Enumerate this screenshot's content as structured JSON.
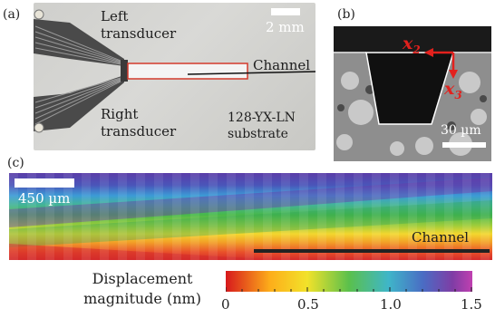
{
  "panel_a": {
    "label": "(a)",
    "left_transducer": "Left\ntransducer",
    "right_transducer": "Right\ntransducer",
    "scale_bar": "2 mm",
    "channel": "Channel",
    "substrate": "128-YX-LN\nsubstrate"
  },
  "panel_b": {
    "label": "(b)",
    "axis_x2": "x",
    "axis_x2_sub": "2",
    "axis_x3": "x",
    "axis_x3_sub": "3",
    "scale_bar": "30 µm",
    "arrow_color": "#e3211d"
  },
  "panel_c": {
    "label": "(c)",
    "scale_bar": "450 µm",
    "channel": "Channel"
  },
  "colorbar": {
    "title_line1": "Displacement",
    "title_line2": "magnitude (nm)",
    "ticks": [
      "0",
      "0.5",
      "1.0",
      "1.5"
    ],
    "range": [
      0,
      1.5
    ],
    "colors": [
      "#d7191c",
      "#fdae1a",
      "#f2e22a",
      "#5ac04c",
      "#3fb6c9",
      "#4a6cc4",
      "#7f3da5",
      "#c040b0"
    ]
  }
}
